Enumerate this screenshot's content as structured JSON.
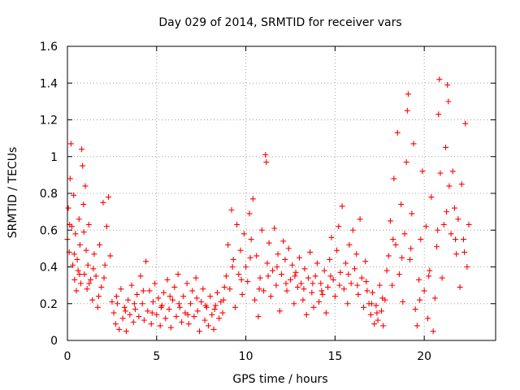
{
  "chart_data": {
    "type": "scatter",
    "title": "Day 029 of 2014, SRMTID for receiver vars",
    "xlabel": "GPS time / hours",
    "ylabel": "SRMTID / TECUs",
    "xlim": [
      0,
      24
    ],
    "ylim": [
      0,
      1.6
    ],
    "xticks": [
      0,
      5,
      10,
      15,
      20
    ],
    "xtick_labels": [
      "0",
      "5",
      "10",
      "15",
      "20"
    ],
    "yticks": [
      0,
      0.2,
      0.4,
      0.6,
      0.8,
      1.0,
      1.2,
      1.4,
      1.6
    ],
    "ytick_labels": [
      "0",
      "0.2",
      "0.4",
      "0.6",
      "0.8",
      "1",
      "1.2",
      "1.4",
      "1.6"
    ],
    "grid": true,
    "marker": "plus",
    "marker_color": "#ff0000",
    "series": [
      {
        "name": "SRMTID",
        "points": [
          [
            0.0,
            0.55
          ],
          [
            0.05,
            0.72
          ],
          [
            0.1,
            0.48
          ],
          [
            0.15,
            0.88
          ],
          [
            0.2,
            1.07
          ],
          [
            0.25,
            0.62
          ],
          [
            0.3,
            0.41
          ],
          [
            0.35,
            0.79
          ],
          [
            0.4,
            0.33
          ],
          [
            0.45,
            0.58
          ],
          [
            0.5,
            0.27
          ],
          [
            0.55,
            0.44
          ],
          [
            0.6,
            0.38
          ],
          [
            0.65,
            0.66
          ],
          [
            0.7,
            0.52
          ],
          [
            0.75,
            0.31
          ],
          [
            0.8,
            1.04
          ],
          [
            0.85,
            0.95
          ],
          [
            0.9,
            0.74
          ],
          [
            0.95,
            0.36
          ],
          [
            1.0,
            0.84
          ],
          [
            1.05,
            0.49
          ],
          [
            1.1,
            0.28
          ],
          [
            1.15,
            0.41
          ],
          [
            1.2,
            0.63
          ],
          [
            1.3,
            0.33
          ],
          [
            1.4,
            0.22
          ],
          [
            1.5,
            0.47
          ],
          [
            1.6,
            0.35
          ],
          [
            1.7,
            0.18
          ],
          [
            1.8,
            0.52
          ],
          [
            1.9,
            0.29
          ],
          [
            2.0,
            0.75
          ],
          [
            2.1,
            0.41
          ],
          [
            2.2,
            0.62
          ],
          [
            2.3,
            0.78
          ],
          [
            2.4,
            0.46
          ],
          [
            2.5,
            0.21
          ],
          [
            0.12,
            0.63
          ],
          [
            0.38,
            0.47
          ],
          [
            0.68,
            0.36
          ],
          [
            0.92,
            0.59
          ],
          [
            1.22,
            0.31
          ],
          [
            1.45,
            0.39
          ],
          [
            1.75,
            0.24
          ],
          [
            2.05,
            0.34
          ],
          [
            2.6,
            0.15
          ],
          [
            2.7,
            0.09
          ],
          [
            2.8,
            0.2
          ],
          [
            2.9,
            0.06
          ],
          [
            3.0,
            0.28
          ],
          [
            3.1,
            0.12
          ],
          [
            3.2,
            0.18
          ],
          [
            3.3,
            0.05
          ],
          [
            3.4,
            0.22
          ],
          [
            3.5,
            0.14
          ],
          [
            3.6,
            0.3
          ],
          [
            3.7,
            0.1
          ],
          [
            3.8,
            0.17
          ],
          [
            3.9,
            0.25
          ],
          [
            4.0,
            0.13
          ],
          [
            4.1,
            0.35
          ],
          [
            4.2,
            0.2
          ],
          [
            4.3,
            0.11
          ],
          [
            4.4,
            0.43
          ],
          [
            4.5,
            0.16
          ],
          [
            4.6,
            0.27
          ],
          [
            4.7,
            0.09
          ],
          [
            4.8,
            0.21
          ],
          [
            4.9,
            0.31
          ],
          [
            5.0,
            0.14
          ],
          [
            5.1,
            0.23
          ],
          [
            5.2,
            0.08
          ],
          [
            5.3,
            0.19
          ],
          [
            5.4,
            0.26
          ],
          [
            5.5,
            0.12
          ],
          [
            5.6,
            0.33
          ],
          [
            5.7,
            0.17
          ],
          [
            5.8,
            0.07
          ],
          [
            5.9,
            0.22
          ],
          [
            6.0,
            0.29
          ],
          [
            6.1,
            0.13
          ],
          [
            6.2,
            0.36
          ],
          [
            6.3,
            0.18
          ],
          [
            6.4,
            0.1
          ],
          [
            6.5,
            0.24
          ],
          [
            6.6,
            0.15
          ],
          [
            6.7,
            0.31
          ],
          [
            6.8,
            0.09
          ],
          [
            6.9,
            0.2
          ],
          [
            7.0,
            0.27
          ],
          [
            7.1,
            0.13
          ],
          [
            7.2,
            0.34
          ],
          [
            7.3,
            0.16
          ],
          [
            7.4,
            0.05
          ],
          [
            7.5,
            0.21
          ],
          [
            7.6,
            0.28
          ],
          [
            7.7,
            0.11
          ],
          [
            7.8,
            0.18
          ],
          [
            7.9,
            0.08
          ],
          [
            8.0,
            0.24
          ],
          [
            8.1,
            0.14
          ],
          [
            8.2,
            0.06
          ],
          [
            8.3,
            0.19
          ],
          [
            8.4,
            0.26
          ],
          [
            8.5,
            0.12
          ],
          [
            8.6,
            0.21
          ],
          [
            8.7,
            0.15
          ],
          [
            8.8,
            0.29
          ],
          [
            2.75,
            0.24
          ],
          [
            3.25,
            0.16
          ],
          [
            3.75,
            0.2
          ],
          [
            4.25,
            0.27
          ],
          [
            4.75,
            0.15
          ],
          [
            5.25,
            0.18
          ],
          [
            5.75,
            0.24
          ],
          [
            6.25,
            0.2
          ],
          [
            6.75,
            0.14
          ],
          [
            7.25,
            0.23
          ],
          [
            7.75,
            0.19
          ],
          [
            8.25,
            0.17
          ],
          [
            8.75,
            0.22
          ],
          [
            8.9,
            0.35
          ],
          [
            9.0,
            0.52
          ],
          [
            9.1,
            0.28
          ],
          [
            9.2,
            0.71
          ],
          [
            9.3,
            0.44
          ],
          [
            9.4,
            0.18
          ],
          [
            9.5,
            0.63
          ],
          [
            9.6,
            0.36
          ],
          [
            9.7,
            0.49
          ],
          [
            9.8,
            0.25
          ],
          [
            9.9,
            0.58
          ],
          [
            10.0,
            0.4
          ],
          [
            10.1,
            0.32
          ],
          [
            10.2,
            0.69
          ],
          [
            10.3,
            0.55
          ],
          [
            10.4,
            0.77
          ],
          [
            10.5,
            0.22
          ],
          [
            10.6,
            0.46
          ],
          [
            10.7,
            0.13
          ],
          [
            10.8,
            0.34
          ],
          [
            10.9,
            0.6
          ],
          [
            11.0,
            0.27
          ],
          [
            11.1,
            1.01
          ],
          [
            11.15,
            0.97
          ],
          [
            11.2,
            0.42
          ],
          [
            11.3,
            0.53
          ],
          [
            11.4,
            0.24
          ],
          [
            11.5,
            0.38
          ],
          [
            11.6,
            0.61
          ],
          [
            11.7,
            0.3
          ],
          [
            11.8,
            0.47
          ],
          [
            11.9,
            0.16
          ],
          [
            12.0,
            0.36
          ],
          [
            12.1,
            0.54
          ],
          [
            12.2,
            0.44
          ],
          [
            12.3,
            0.27
          ],
          [
            12.4,
            0.5
          ],
          [
            12.5,
            0.33
          ],
          [
            12.6,
            0.41
          ],
          [
            12.7,
            0.2
          ],
          [
            12.8,
            0.37
          ],
          [
            12.9,
            0.29
          ],
          [
            13.0,
            0.45
          ],
          [
            13.1,
            0.31
          ],
          [
            13.2,
            0.22
          ],
          [
            13.3,
            0.39
          ],
          [
            13.4,
            0.14
          ],
          [
            13.5,
            0.34
          ],
          [
            13.6,
            0.48
          ],
          [
            13.7,
            0.26
          ],
          [
            13.8,
            0.18
          ],
          [
            13.9,
            0.35
          ],
          [
            14.0,
            0.42
          ],
          [
            14.1,
            0.21
          ],
          [
            14.2,
            0.31
          ],
          [
            14.3,
            0.25
          ],
          [
            14.4,
            0.38
          ],
          [
            14.5,
            0.15
          ],
          [
            14.6,
            0.29
          ],
          [
            14.7,
            0.44
          ],
          [
            14.8,
            0.56
          ],
          [
            14.9,
            0.33
          ],
          [
            15.0,
            0.24
          ],
          [
            15.1,
            0.49
          ],
          [
            15.2,
            0.62
          ],
          [
            15.3,
            0.37
          ],
          [
            15.4,
            0.73
          ],
          [
            15.5,
            0.28
          ],
          [
            15.6,
            0.42
          ],
          [
            15.7,
            0.2
          ],
          [
            15.8,
            0.52
          ],
          [
            15.9,
            0.31
          ],
          [
            16.0,
            0.6
          ],
          [
            16.1,
            0.39
          ],
          [
            16.2,
            0.47
          ],
          [
            16.3,
            0.25
          ],
          [
            16.4,
            0.66
          ],
          [
            16.5,
            0.34
          ],
          [
            16.6,
            0.18
          ],
          [
            16.7,
            0.43
          ],
          [
            16.8,
            0.27
          ],
          [
            16.9,
            0.2
          ],
          [
            9.25,
            0.4
          ],
          [
            9.75,
            0.33
          ],
          [
            10.25,
            0.45
          ],
          [
            10.75,
            0.28
          ],
          [
            11.25,
            0.35
          ],
          [
            11.75,
            0.4
          ],
          [
            12.25,
            0.31
          ],
          [
            12.75,
            0.35
          ],
          [
            13.25,
            0.28
          ],
          [
            13.75,
            0.31
          ],
          [
            14.25,
            0.27
          ],
          [
            14.75,
            0.35
          ],
          [
            15.25,
            0.3
          ],
          [
            15.75,
            0.36
          ],
          [
            16.25,
            0.3
          ],
          [
            16.75,
            0.32
          ],
          [
            17.0,
            0.14
          ],
          [
            17.1,
            0.26
          ],
          [
            17.2,
            0.09
          ],
          [
            17.3,
            0.19
          ],
          [
            17.4,
            0.11
          ],
          [
            17.5,
            0.3
          ],
          [
            17.6,
            0.16
          ],
          [
            17.7,
            0.08
          ],
          [
            17.8,
            0.22
          ],
          [
            17.9,
            0.38
          ],
          [
            17.05,
            0.2
          ],
          [
            17.35,
            0.15
          ],
          [
            17.65,
            0.23
          ],
          [
            18.0,
            0.46
          ],
          [
            18.1,
            0.65
          ],
          [
            18.2,
            0.3
          ],
          [
            18.3,
            0.88
          ],
          [
            18.4,
            0.52
          ],
          [
            18.5,
            1.13
          ],
          [
            18.6,
            0.36
          ],
          [
            18.7,
            0.74
          ],
          [
            18.8,
            0.21
          ],
          [
            18.9,
            0.58
          ],
          [
            19.0,
            0.97
          ],
          [
            19.05,
            1.25
          ],
          [
            19.1,
            1.34
          ],
          [
            19.2,
            0.44
          ],
          [
            19.3,
            0.69
          ],
          [
            19.4,
            1.07
          ],
          [
            19.5,
            0.17
          ],
          [
            19.6,
            0.08
          ],
          [
            19.7,
            0.33
          ],
          [
            19.8,
            0.55
          ],
          [
            19.9,
            0.92
          ],
          [
            20.0,
            0.27
          ],
          [
            20.1,
            0.62
          ],
          [
            20.2,
            0.12
          ],
          [
            20.3,
            0.38
          ],
          [
            20.4,
            0.78
          ],
          [
            20.5,
            0.05
          ],
          [
            20.6,
            0.23
          ],
          [
            20.7,
            0.51
          ],
          [
            20.8,
            1.23
          ],
          [
            20.85,
            1.42
          ],
          [
            20.9,
            0.91
          ],
          [
            21.0,
            0.34
          ],
          [
            21.1,
            0.63
          ],
          [
            21.2,
            1.05
          ],
          [
            21.3,
            1.39
          ],
          [
            21.35,
            1.3
          ],
          [
            21.4,
            0.84
          ],
          [
            21.5,
            0.58
          ],
          [
            21.6,
            0.92
          ],
          [
            21.7,
            0.72
          ],
          [
            21.8,
            0.47
          ],
          [
            21.9,
            0.66
          ],
          [
            22.0,
            0.29
          ],
          [
            22.1,
            0.85
          ],
          [
            22.2,
            0.55
          ],
          [
            22.3,
            1.18
          ],
          [
            22.4,
            0.4
          ],
          [
            22.5,
            0.63
          ],
          [
            18.25,
            0.55
          ],
          [
            18.75,
            0.45
          ],
          [
            19.25,
            0.5
          ],
          [
            19.75,
            0.22
          ],
          [
            20.25,
            0.35
          ],
          [
            20.75,
            0.6
          ],
          [
            21.25,
            0.7
          ],
          [
            21.75,
            0.55
          ],
          [
            22.25,
            0.48
          ]
        ]
      }
    ]
  }
}
